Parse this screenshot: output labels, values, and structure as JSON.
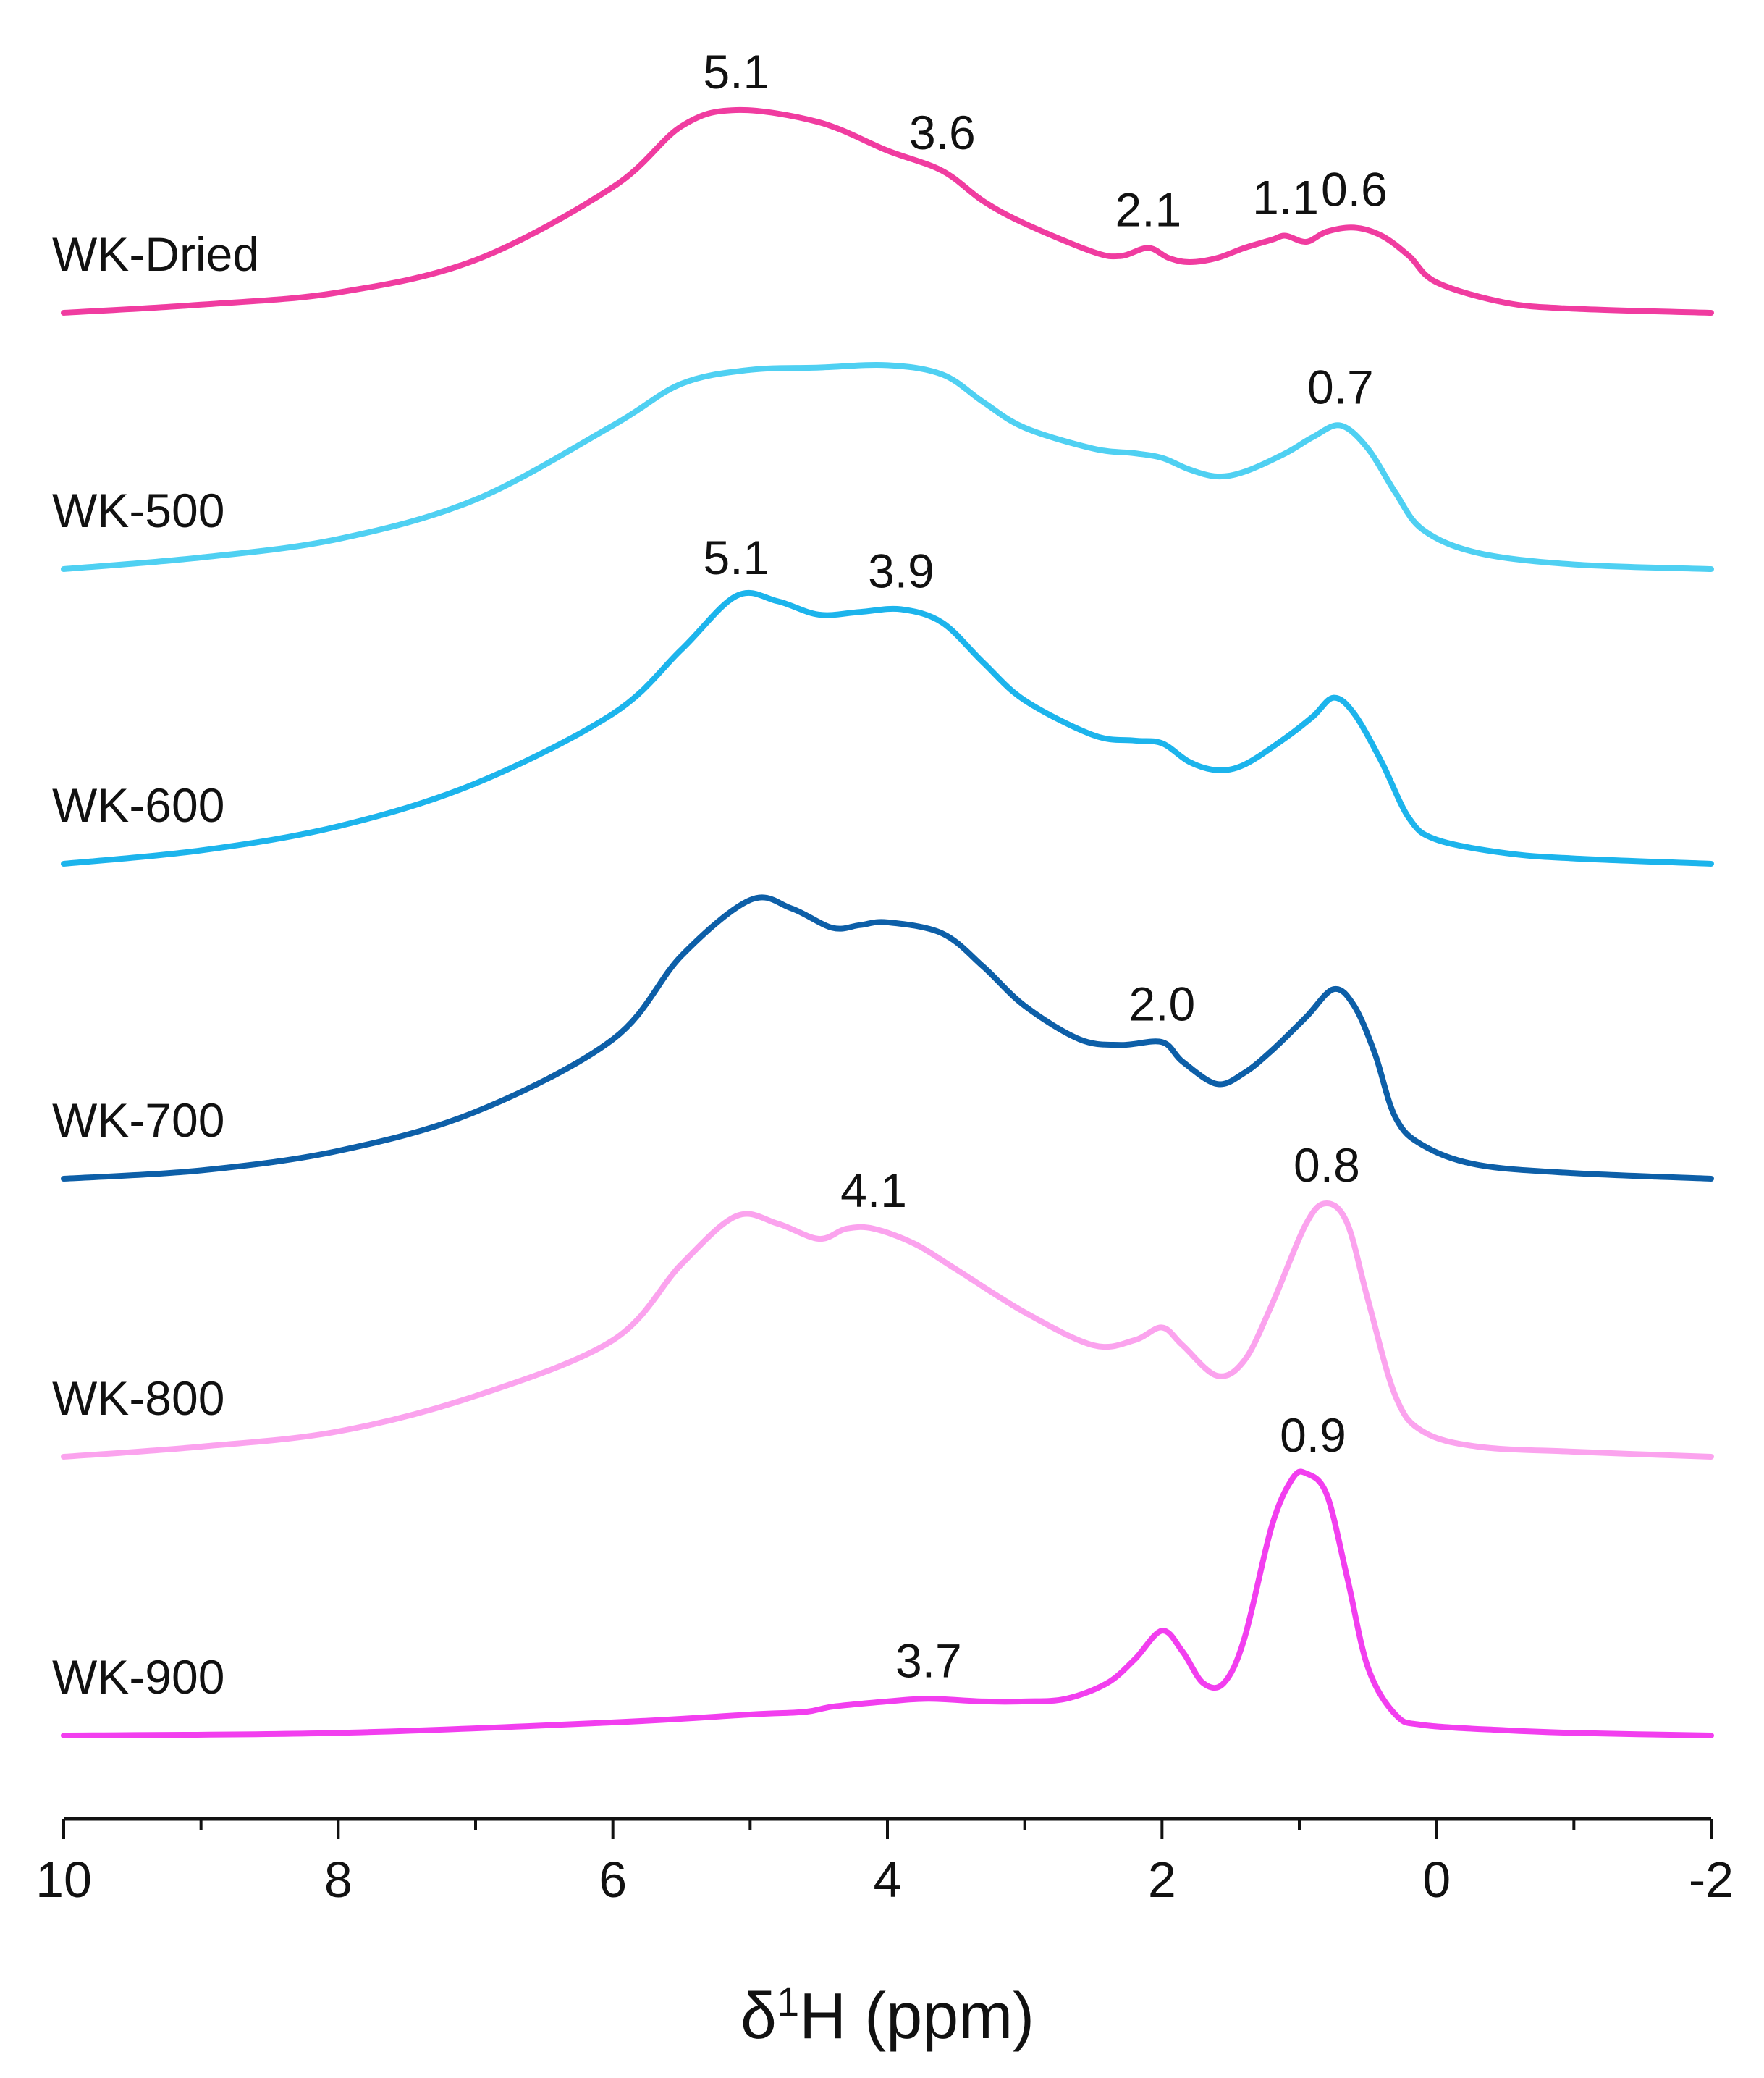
{
  "chart_data": {
    "type": "line",
    "subtype": "stacked-offset spectra (1H NMR)",
    "xlabel": "δ¹H (ppm)",
    "xlabel_parts": {
      "symbol": "δ",
      "superscript": "1",
      "rest": "H (ppm)"
    },
    "ylabel": "",
    "xlim": [
      10,
      -2
    ],
    "x_reversed": true,
    "x_ticks": [
      "10",
      "8",
      "6",
      "4",
      "2",
      "0",
      "-2"
    ],
    "x_tick_values": [
      10,
      8,
      6,
      4,
      2,
      0,
      -2
    ],
    "x_minor_tick_step": 1,
    "grid": false,
    "legend": "labels to the left of each trace",
    "series": [
      {
        "name": "WK-Dried",
        "color": "#f03ca0",
        "points": [
          [
            10,
            0.0
          ],
          [
            9,
            0.04
          ],
          [
            8,
            0.1
          ],
          [
            7,
            0.26
          ],
          [
            6,
            0.62
          ],
          [
            5.5,
            0.92
          ],
          [
            5.1,
            1.0
          ],
          [
            4.5,
            0.94
          ],
          [
            4,
            0.8
          ],
          [
            3.6,
            0.7
          ],
          [
            3.3,
            0.55
          ],
          [
            3,
            0.44
          ],
          [
            2.5,
            0.3
          ],
          [
            2.3,
            0.28
          ],
          [
            2.1,
            0.32
          ],
          [
            1.95,
            0.27
          ],
          [
            1.8,
            0.25
          ],
          [
            1.6,
            0.27
          ],
          [
            1.4,
            0.32
          ],
          [
            1.2,
            0.36
          ],
          [
            1.1,
            0.38
          ],
          [
            0.95,
            0.35
          ],
          [
            0.8,
            0.4
          ],
          [
            0.6,
            0.42
          ],
          [
            0.4,
            0.38
          ],
          [
            0.2,
            0.28
          ],
          [
            0,
            0.15
          ],
          [
            -0.5,
            0.05
          ],
          [
            -1,
            0.02
          ],
          [
            -2,
            0.0
          ]
        ],
        "peak_labels": [
          {
            "text": "5.1",
            "x": 5.1,
            "y": 1.0
          },
          {
            "text": "3.6",
            "x": 3.6,
            "y": 0.7
          },
          {
            "text": "2.1",
            "x": 2.1,
            "y": 0.32
          },
          {
            "text": "1.1",
            "x": 1.1,
            "y": 0.38
          },
          {
            "text": "0.6",
            "x": 0.6,
            "y": 0.42
          }
        ]
      },
      {
        "name": "WK-500",
        "color": "#4fd0f2",
        "points": [
          [
            10,
            0.0
          ],
          [
            9,
            0.05
          ],
          [
            8,
            0.13
          ],
          [
            7,
            0.3
          ],
          [
            6,
            0.62
          ],
          [
            5.5,
            0.8
          ],
          [
            5,
            0.86
          ],
          [
            4.5,
            0.87
          ],
          [
            4,
            0.88
          ],
          [
            3.6,
            0.84
          ],
          [
            3.3,
            0.72
          ],
          [
            3,
            0.61
          ],
          [
            2.5,
            0.52
          ],
          [
            2.2,
            0.5
          ],
          [
            2,
            0.48
          ],
          [
            1.8,
            0.43
          ],
          [
            1.6,
            0.4
          ],
          [
            1.4,
            0.42
          ],
          [
            1.1,
            0.5
          ],
          [
            0.9,
            0.57
          ],
          [
            0.7,
            0.62
          ],
          [
            0.5,
            0.52
          ],
          [
            0.3,
            0.33
          ],
          [
            0.1,
            0.17
          ],
          [
            -0.3,
            0.07
          ],
          [
            -1,
            0.02
          ],
          [
            -2,
            0.0
          ]
        ],
        "peak_labels": [
          {
            "text": "0.7",
            "x": 0.7,
            "y": 0.62
          }
        ]
      },
      {
        "name": "WK-600",
        "color": "#1cb4ec",
        "points": [
          [
            10,
            0.0
          ],
          [
            9,
            0.05
          ],
          [
            8,
            0.14
          ],
          [
            7,
            0.3
          ],
          [
            6,
            0.56
          ],
          [
            5.5,
            0.8
          ],
          [
            5.1,
            1.0
          ],
          [
            4.8,
            0.98
          ],
          [
            4.5,
            0.93
          ],
          [
            4.2,
            0.94
          ],
          [
            3.9,
            0.95
          ],
          [
            3.6,
            0.9
          ],
          [
            3.3,
            0.75
          ],
          [
            3,
            0.61
          ],
          [
            2.5,
            0.48
          ],
          [
            2.2,
            0.46
          ],
          [
            2,
            0.45
          ],
          [
            1.8,
            0.38
          ],
          [
            1.6,
            0.35
          ],
          [
            1.4,
            0.37
          ],
          [
            1.1,
            0.47
          ],
          [
            0.9,
            0.55
          ],
          [
            0.75,
            0.62
          ],
          [
            0.6,
            0.56
          ],
          [
            0.4,
            0.38
          ],
          [
            0.2,
            0.17
          ],
          [
            0,
            0.09
          ],
          [
            -0.5,
            0.04
          ],
          [
            -1,
            0.02
          ],
          [
            -2,
            0.0
          ]
        ],
        "peak_labels": [
          {
            "text": "5.1",
            "x": 5.1,
            "y": 1.0
          },
          {
            "text": "3.9",
            "x": 3.9,
            "y": 0.95
          }
        ]
      },
      {
        "name": "WK-700",
        "color": "#0d5fa8",
        "points": [
          [
            10,
            0.0
          ],
          [
            9,
            0.03
          ],
          [
            8,
            0.1
          ],
          [
            7,
            0.24
          ],
          [
            6,
            0.5
          ],
          [
            5.5,
            0.8
          ],
          [
            5,
            1.0
          ],
          [
            4.7,
            0.97
          ],
          [
            4.4,
            0.9
          ],
          [
            4.2,
            0.91
          ],
          [
            4,
            0.92
          ],
          [
            3.6,
            0.88
          ],
          [
            3.3,
            0.76
          ],
          [
            3,
            0.62
          ],
          [
            2.6,
            0.5
          ],
          [
            2.3,
            0.48
          ],
          [
            2,
            0.49
          ],
          [
            1.85,
            0.42
          ],
          [
            1.6,
            0.34
          ],
          [
            1.4,
            0.38
          ],
          [
            1.2,
            0.46
          ],
          [
            0.95,
            0.58
          ],
          [
            0.75,
            0.68
          ],
          [
            0.6,
            0.62
          ],
          [
            0.45,
            0.45
          ],
          [
            0.3,
            0.22
          ],
          [
            0.1,
            0.12
          ],
          [
            -0.3,
            0.05
          ],
          [
            -1,
            0.02
          ],
          [
            -2,
            0.0
          ]
        ],
        "peak_labels": [
          {
            "text": "2.0",
            "x": 2.0,
            "y": 0.49
          }
        ]
      },
      {
        "name": "WK-800",
        "color": "#fba3ee",
        "points": [
          [
            10,
            0.0
          ],
          [
            9,
            0.04
          ],
          [
            8,
            0.1
          ],
          [
            7,
            0.24
          ],
          [
            6,
            0.46
          ],
          [
            5.5,
            0.76
          ],
          [
            5.1,
            0.95
          ],
          [
            4.8,
            0.92
          ],
          [
            4.5,
            0.86
          ],
          [
            4.3,
            0.9
          ],
          [
            4.1,
            0.9
          ],
          [
            3.8,
            0.84
          ],
          [
            3.5,
            0.74
          ],
          [
            3,
            0.57
          ],
          [
            2.5,
            0.44
          ],
          [
            2.2,
            0.46
          ],
          [
            2,
            0.51
          ],
          [
            1.85,
            0.44
          ],
          [
            1.6,
            0.32
          ],
          [
            1.4,
            0.38
          ],
          [
            1.2,
            0.6
          ],
          [
            0.95,
            0.92
          ],
          [
            0.8,
            1.0
          ],
          [
            0.65,
            0.92
          ],
          [
            0.5,
            0.62
          ],
          [
            0.3,
            0.24
          ],
          [
            0.1,
            0.1
          ],
          [
            -0.3,
            0.04
          ],
          [
            -1,
            0.02
          ],
          [
            -2,
            0.0
          ]
        ],
        "peak_labels": [
          {
            "text": "4.1",
            "x": 4.1,
            "y": 0.9
          },
          {
            "text": "0.8",
            "x": 0.8,
            "y": 1.0
          }
        ]
      },
      {
        "name": "WK-900",
        "color": "#f23eef",
        "points": [
          [
            10,
            0.0
          ],
          [
            8,
            0.01
          ],
          [
            6,
            0.05
          ],
          [
            5,
            0.08
          ],
          [
            4.6,
            0.09
          ],
          [
            4.4,
            0.11
          ],
          [
            4,
            0.13
          ],
          [
            3.7,
            0.14
          ],
          [
            3.3,
            0.13
          ],
          [
            3,
            0.13
          ],
          [
            2.7,
            0.14
          ],
          [
            2.4,
            0.2
          ],
          [
            2.2,
            0.29
          ],
          [
            2,
            0.4
          ],
          [
            1.85,
            0.32
          ],
          [
            1.7,
            0.2
          ],
          [
            1.55,
            0.2
          ],
          [
            1.4,
            0.37
          ],
          [
            1.2,
            0.8
          ],
          [
            1.05,
            0.98
          ],
          [
            0.95,
            1.0
          ],
          [
            0.8,
            0.92
          ],
          [
            0.65,
            0.6
          ],
          [
            0.5,
            0.26
          ],
          [
            0.3,
            0.08
          ],
          [
            0.1,
            0.04
          ],
          [
            -0.5,
            0.02
          ],
          [
            -1,
            0.01
          ],
          [
            -2,
            0.0
          ]
        ],
        "peak_labels": [
          {
            "text": "3.7",
            "x": 3.7,
            "y": 0.14
          },
          {
            "text": "0.9",
            "x": 0.9,
            "y": 1.0
          }
        ]
      }
    ]
  }
}
